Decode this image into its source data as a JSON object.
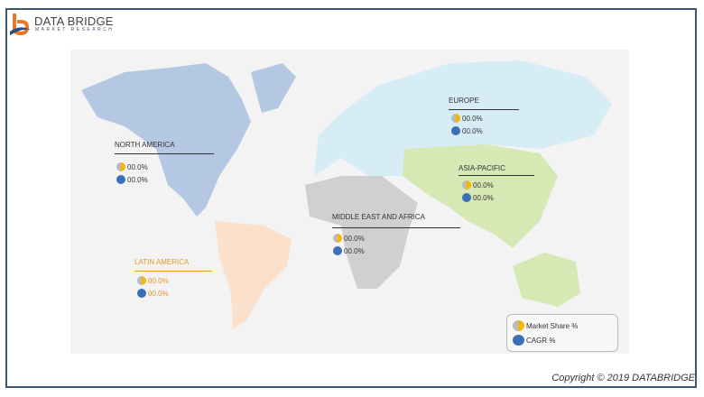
{
  "logo": {
    "title": "DATA BRIDGE",
    "subtitle": "MARKET RESEARCH"
  },
  "regions": [
    {
      "name": "NORTH AMERICA",
      "market_share": "00.0%",
      "cagr": "00.0%",
      "color": "#333333"
    },
    {
      "name": "EUROPE",
      "market_share": "00.0%",
      "cagr": "00.0%",
      "color": "#333333"
    },
    {
      "name": "ASIA-PACIFIC",
      "market_share": "00.0%",
      "cagr": "00.0%",
      "color": "#333333"
    },
    {
      "name": "MIDDLE EAST AND AFRICA",
      "market_share": "00.0%",
      "cagr": "00.0%",
      "color": "#333333"
    },
    {
      "name": "LATIN AMERICA",
      "market_share": "00.0%",
      "cagr": "00.0%",
      "color": "#e8952a"
    }
  ],
  "legend": {
    "market_share": "Market Share %",
    "cagr": "CAGR %"
  },
  "copyright": "Copyright © 2019 DATABRIDGE"
}
